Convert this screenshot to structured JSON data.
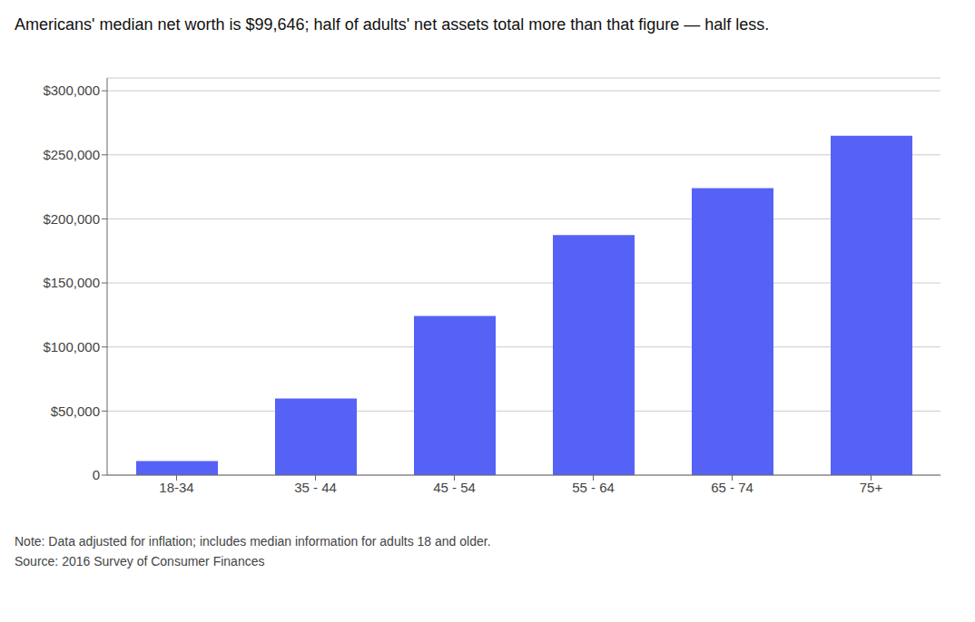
{
  "chart_data": {
    "type": "bar",
    "title": "Americans' median net worth is $99,646; half of adults' net assets total more than that figure — half less.",
    "categories": [
      "18-34",
      "35 - 44",
      "45 - 54",
      "55 - 64",
      "65 - 74",
      "75+"
    ],
    "values": [
      11000,
      59800,
      124200,
      187300,
      224000,
      264800
    ],
    "color": "#5562f5",
    "ylim": [
      0,
      310000
    ],
    "yticks": [
      0,
      {
        "value": 50000,
        "label": "$50,000"
      },
      {
        "value": 100000,
        "label": "$100,000"
      },
      {
        "value": 150000,
        "label": "$150,000"
      },
      {
        "value": 200000,
        "label": "$200,000"
      },
      {
        "value": 250000,
        "label": "$250,000"
      },
      {
        "value": 300000,
        "label": "$300,000"
      }
    ],
    "grid": true,
    "annotations": [
      "Note: Data adjusted for inflation; includes median information for adults 18 and older.",
      "Source: 2016 Survey of Consumer Finances"
    ]
  }
}
